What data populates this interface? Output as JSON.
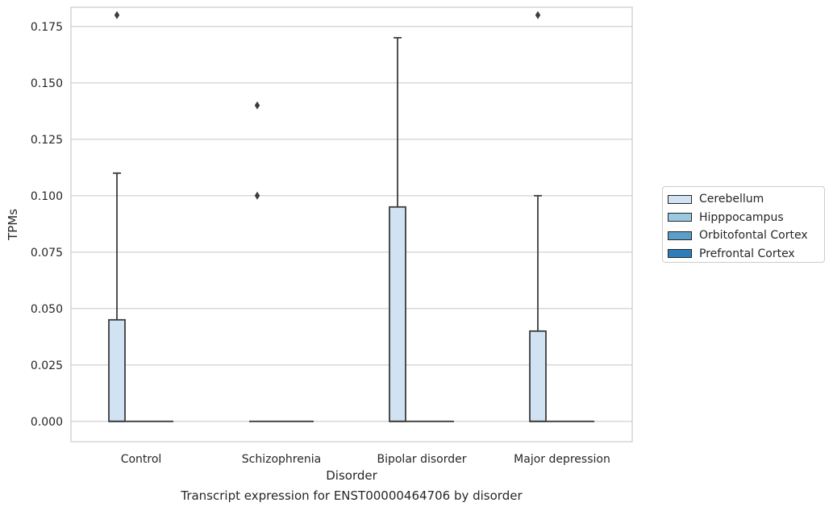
{
  "chart_data": {
    "type": "box",
    "title": "Transcript expression for ENST00000464706 by disorder",
    "xlabel": "Disorder",
    "ylabel": "TPMs",
    "categories": [
      "Control",
      "Schizophrenia",
      "Bipolar disorder",
      "Major depression"
    ],
    "ylim": [
      -0.009,
      0.1835
    ],
    "yticks": [
      0.0,
      0.025,
      0.05,
      0.075,
      0.1,
      0.125,
      0.15,
      0.175
    ],
    "ytick_labels": [
      "0.000",
      "0.025",
      "0.050",
      "0.075",
      "0.100",
      "0.125",
      "0.150",
      "0.175"
    ],
    "grid": true,
    "legend_position": "right",
    "series": [
      {
        "name": "Cerebellum",
        "color": "#d1e2f2",
        "boxes": [
          {
            "q1": 0.0,
            "median": 0.0,
            "q3": 0.045,
            "whisker_low": 0.0,
            "whisker_high": 0.11,
            "outliers": [
              0.18
            ]
          },
          {
            "q1": 0.0,
            "median": 0.0,
            "q3": 0.0,
            "whisker_low": 0.0,
            "whisker_high": 0.0,
            "outliers": [
              0.1,
              0.14
            ]
          },
          {
            "q1": 0.0,
            "median": 0.0,
            "q3": 0.095,
            "whisker_low": 0.0,
            "whisker_high": 0.17,
            "outliers": []
          },
          {
            "q1": 0.0,
            "median": 0.0,
            "q3": 0.04,
            "whisker_low": 0.0,
            "whisker_high": 0.1,
            "outliers": [
              0.18
            ]
          }
        ]
      },
      {
        "name": "Hipppocampus",
        "color": "#9ac8e0",
        "boxes": [
          {
            "q1": 0.0,
            "median": 0.0,
            "q3": 0.0,
            "whisker_low": 0.0,
            "whisker_high": 0.0,
            "outliers": []
          },
          {
            "q1": 0.0,
            "median": 0.0,
            "q3": 0.0,
            "whisker_low": 0.0,
            "whisker_high": 0.0,
            "outliers": []
          },
          {
            "q1": 0.0,
            "median": 0.0,
            "q3": 0.0,
            "whisker_low": 0.0,
            "whisker_high": 0.0,
            "outliers": []
          },
          {
            "q1": 0.0,
            "median": 0.0,
            "q3": 0.0,
            "whisker_low": 0.0,
            "whisker_high": 0.0,
            "outliers": []
          }
        ]
      },
      {
        "name": "Orbitofontal Cortex",
        "color": "#5a9ec9",
        "boxes": [
          {
            "q1": 0.0,
            "median": 0.0,
            "q3": 0.0,
            "whisker_low": 0.0,
            "whisker_high": 0.0,
            "outliers": []
          },
          {
            "q1": 0.0,
            "median": 0.0,
            "q3": 0.0,
            "whisker_low": 0.0,
            "whisker_high": 0.0,
            "outliers": []
          },
          {
            "q1": 0.0,
            "median": 0.0,
            "q3": 0.0,
            "whisker_low": 0.0,
            "whisker_high": 0.0,
            "outliers": []
          },
          {
            "q1": 0.0,
            "median": 0.0,
            "q3": 0.0,
            "whisker_low": 0.0,
            "whisker_high": 0.0,
            "outliers": []
          }
        ]
      },
      {
        "name": "Prefrontal Cortex",
        "color": "#2d7dbb",
        "boxes": [
          {
            "q1": 0.0,
            "median": 0.0,
            "q3": 0.0,
            "whisker_low": 0.0,
            "whisker_high": 0.0,
            "outliers": []
          },
          {
            "q1": 0.0,
            "median": 0.0,
            "q3": 0.0,
            "whisker_low": 0.0,
            "whisker_high": 0.0,
            "outliers": []
          },
          {
            "q1": 0.0,
            "median": 0.0,
            "q3": 0.0,
            "whisker_low": 0.0,
            "whisker_high": 0.0,
            "outliers": []
          },
          {
            "q1": 0.0,
            "median": 0.0,
            "q3": 0.0,
            "whisker_low": 0.0,
            "whisker_high": 0.0,
            "outliers": []
          }
        ]
      }
    ]
  }
}
